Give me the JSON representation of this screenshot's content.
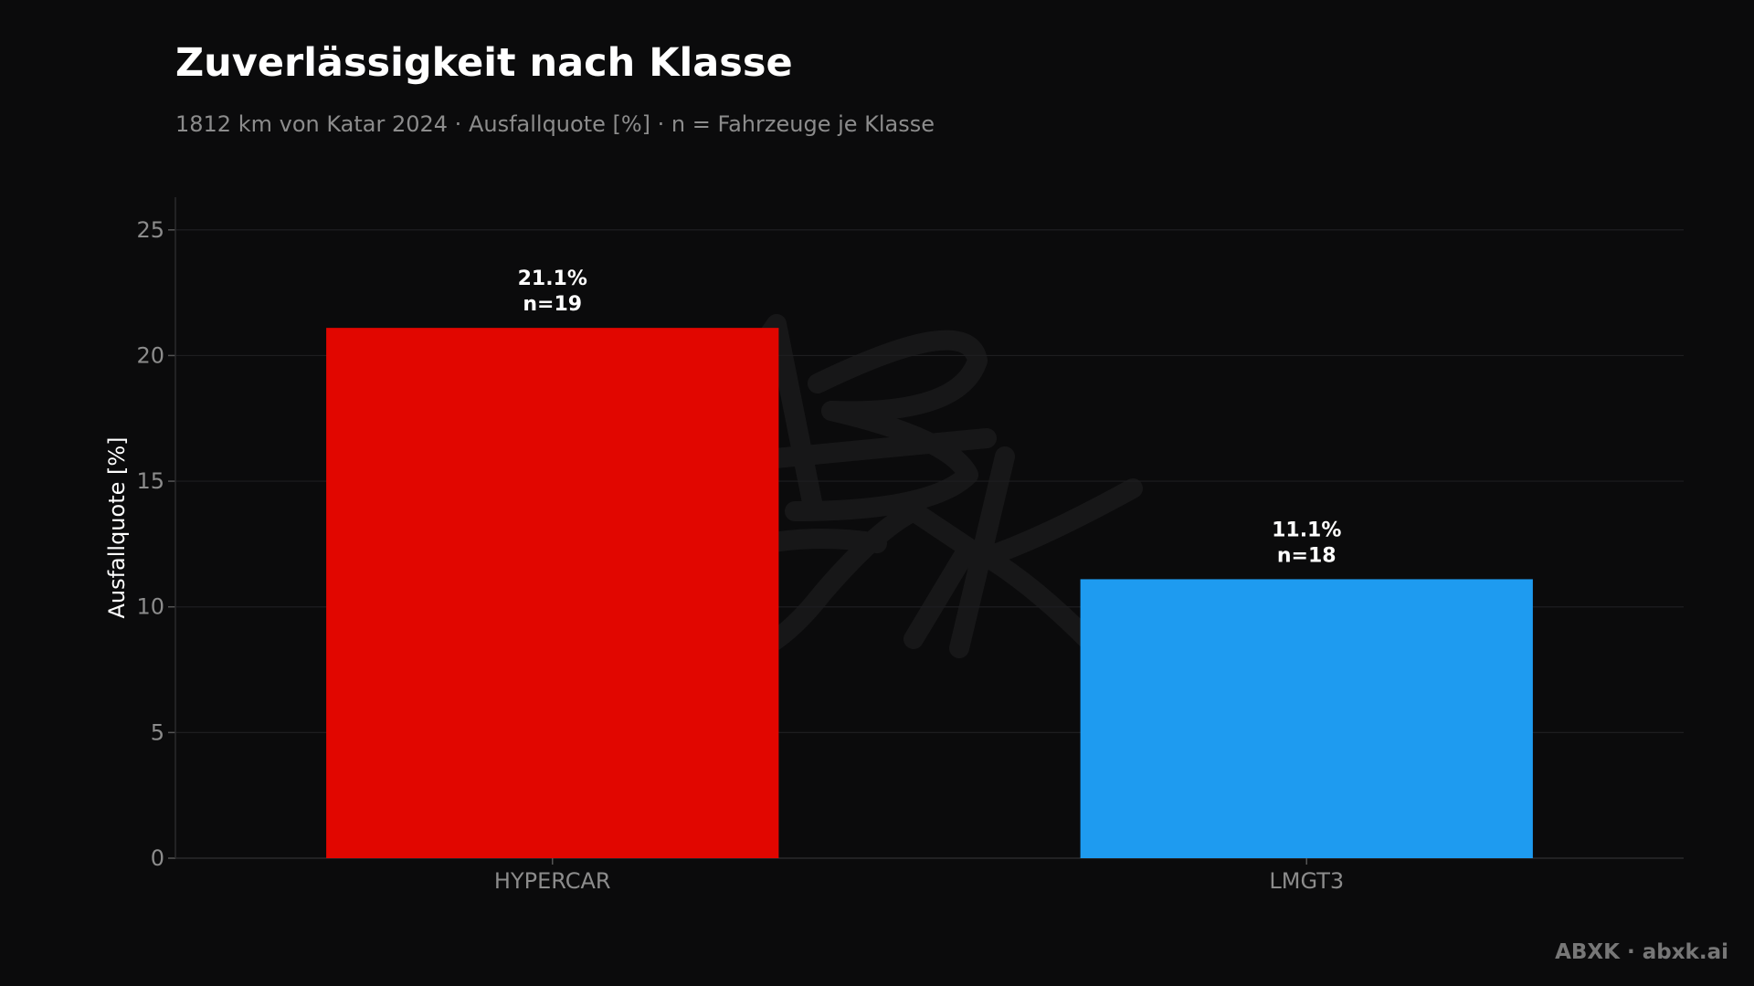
{
  "header": {
    "title": "Zuverlässigkeit nach Klasse",
    "subtitle": "1812 km von Katar 2024 · Ausfallquote [%] · n = Fahrzeuge je Klasse"
  },
  "footer": {
    "credit": "ABXK · abxk.ai"
  },
  "chart_data": {
    "type": "bar",
    "categories": [
      "HYPERCAR",
      "LMGT3"
    ],
    "values": [
      21.1,
      11.1
    ],
    "data_labels": [
      "21.1%",
      "11.1%"
    ],
    "n_labels": [
      "n=19",
      "n=18"
    ],
    "colors": [
      "#e10600",
      "#1e9bf0"
    ],
    "xlabel": "",
    "ylabel": "Ausfallquote [%]",
    "ylim": [
      0,
      26.3
    ],
    "yticks": [
      0,
      5,
      10,
      15,
      20,
      25
    ],
    "grid": true,
    "legend": "none",
    "background": "#0b0b0c",
    "watermark": "ABXK"
  }
}
